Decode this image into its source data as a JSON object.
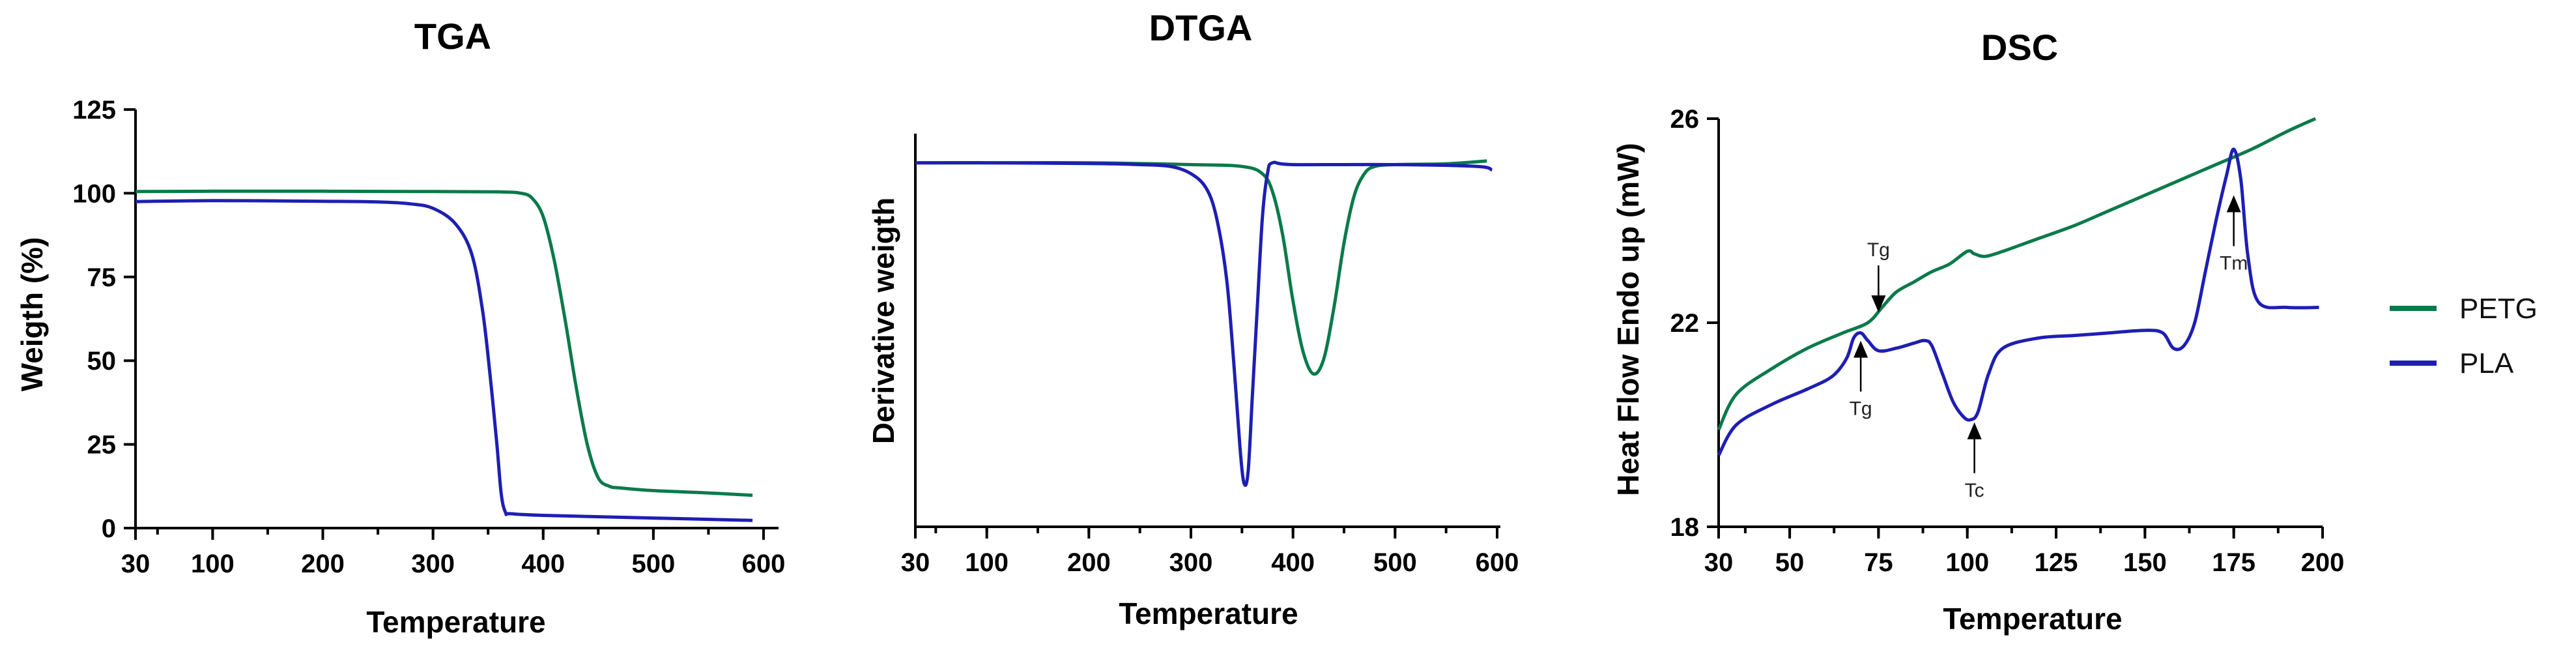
{
  "colors": {
    "PETG": "#0a7a4a",
    "PLA": "#1e1eb4"
  },
  "chart_data": [
    {
      "type": "line",
      "title": "TGA",
      "xlabel": "Temperature",
      "ylabel": "Weigth (%)",
      "xlim": [
        30,
        600
      ],
      "ylim": [
        0,
        125
      ],
      "xticks": [
        30,
        100,
        200,
        300,
        400,
        500,
        600
      ],
      "xticks_labeled": [
        "30",
        "100",
        "200",
        "300",
        "400",
        "500",
        "600"
      ],
      "yticks": [
        "0",
        "25",
        "50",
        "75",
        "100",
        "125"
      ],
      "series": [
        {
          "name": "PETG",
          "x": [
            30,
            100,
            200,
            300,
            360,
            380,
            390,
            400,
            410,
            420,
            430,
            440,
            450,
            460,
            470,
            500,
            550,
            590
          ],
          "y": [
            100.5,
            100.6,
            100.6,
            100.5,
            100.4,
            100.0,
            98.5,
            93,
            80,
            62,
            42,
            25,
            15,
            12.5,
            12,
            11.2,
            10.5,
            9.8
          ]
        },
        {
          "name": "PLA",
          "x": [
            30,
            100,
            200,
            250,
            280,
            300,
            320,
            335,
            345,
            352,
            358,
            362,
            366,
            370,
            400,
            500,
            590
          ],
          "y": [
            97.5,
            97.8,
            97.6,
            97.4,
            96.8,
            95.5,
            91,
            82,
            65,
            45,
            25,
            10,
            4.5,
            4.3,
            3.8,
            3.0,
            2.3
          ]
        }
      ]
    },
    {
      "type": "line",
      "title": "DTGA",
      "xlabel": "Temperature",
      "ylabel": "Derivative weigth",
      "xlim": [
        30,
        600
      ],
      "ylim": [
        -1,
        0.08
      ],
      "xticks": [
        30,
        100,
        200,
        300,
        400,
        500,
        600
      ],
      "xticks_labeled": [
        "30",
        "100",
        "200",
        "300",
        "400",
        "500",
        "600"
      ],
      "series": [
        {
          "name": "PETG",
          "x": [
            30,
            100,
            200,
            300,
            350,
            370,
            380,
            390,
            400,
            410,
            420,
            430,
            440,
            450,
            460,
            470,
            480,
            500,
            550,
            590
          ],
          "y": [
            0,
            0,
            0,
            -0.005,
            -0.01,
            -0.03,
            -0.08,
            -0.2,
            -0.38,
            -0.52,
            -0.58,
            -0.54,
            -0.4,
            -0.22,
            -0.09,
            -0.03,
            -0.01,
            -0.005,
            -0.003,
            0.005
          ]
        },
        {
          "name": "PLA",
          "x": [
            30,
            100,
            200,
            250,
            280,
            300,
            315,
            325,
            335,
            342,
            348,
            352,
            356,
            360,
            365,
            370,
            375,
            380,
            400,
            500,
            580,
            595
          ],
          "y": [
            0,
            0,
            -0.002,
            -0.005,
            -0.01,
            -0.03,
            -0.07,
            -0.15,
            -0.32,
            -0.55,
            -0.78,
            -0.88,
            -0.85,
            -0.65,
            -0.4,
            -0.15,
            -0.03,
            0,
            -0.005,
            -0.005,
            -0.01,
            -0.02
          ]
        }
      ]
    },
    {
      "type": "line",
      "title": "DSC",
      "xlabel": "Temperature",
      "ylabel": "Heat Flow Endo up (mW)",
      "xlim": [
        30,
        200
      ],
      "ylim": [
        18,
        26
      ],
      "xticks": [
        30,
        50,
        75,
        100,
        125,
        150,
        175,
        200
      ],
      "xticks_labeled": [
        "30",
        "50",
        "75",
        "100",
        "125",
        "150",
        "175",
        "200"
      ],
      "yticks": [
        "18",
        "22",
        "26"
      ],
      "series": [
        {
          "name": "PETG",
          "x": [
            30,
            35,
            45,
            55,
            65,
            72,
            76,
            80,
            85,
            90,
            95,
            100,
            102,
            105,
            110,
            120,
            130,
            140,
            150,
            160,
            170,
            180,
            190,
            198
          ],
          "y": [
            19.9,
            20.6,
            21.1,
            21.5,
            21.8,
            22.0,
            22.3,
            22.6,
            22.8,
            23.0,
            23.15,
            23.4,
            23.35,
            23.3,
            23.4,
            23.65,
            23.9,
            24.2,
            24.5,
            24.8,
            25.1,
            25.4,
            25.75,
            26.0
          ]
        },
        {
          "name": "PLA",
          "x": [
            30,
            35,
            45,
            55,
            62,
            66,
            68,
            70,
            72,
            75,
            80,
            85,
            88,
            90,
            93,
            96,
            99,
            101,
            103,
            106,
            110,
            120,
            130,
            140,
            150,
            155,
            158,
            161,
            164,
            167,
            170,
            173,
            175,
            177,
            179,
            182,
            190,
            199
          ],
          "y": [
            19.4,
            20.0,
            20.4,
            20.7,
            20.95,
            21.3,
            21.7,
            21.8,
            21.65,
            21.45,
            21.5,
            21.6,
            21.65,
            21.55,
            21.0,
            20.45,
            20.15,
            20.1,
            20.25,
            21.0,
            21.5,
            21.7,
            21.75,
            21.8,
            21.85,
            21.8,
            21.5,
            21.55,
            22.0,
            23.0,
            24.0,
            24.9,
            25.4,
            24.8,
            23.3,
            22.4,
            22.3,
            22.3
          ]
        }
      ],
      "annotations": [
        {
          "text": "Tg",
          "series": "PETG",
          "x": 75,
          "y": 22.1,
          "direction": "down"
        },
        {
          "text": "Tg",
          "series": "PLA",
          "x": 70,
          "y": 21.75,
          "direction": "up"
        },
        {
          "text": "Tc",
          "series": "PLA",
          "x": 102,
          "y": 20.15,
          "direction": "up"
        },
        {
          "text": "Tm",
          "series": "PLA",
          "x": 175,
          "y": 24.6,
          "direction": "up"
        }
      ],
      "legend": {
        "position": "right",
        "entries": [
          "PETG",
          "PLA"
        ]
      }
    }
  ]
}
